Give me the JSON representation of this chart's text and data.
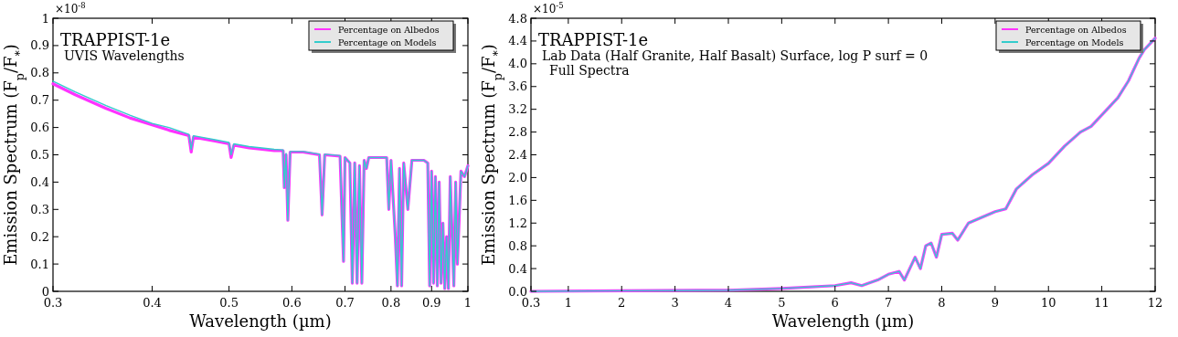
{
  "chart_data": [
    {
      "type": "line",
      "title": "TRAPPIST-1e",
      "subtitle": "UVIS Wavelengths",
      "xlabel": "Wavelength (µm)",
      "ylabel": "Emission Spectrum (F$_{p}$/F$_{*}$)",
      "annotations": [
        "×10$^{-8}$"
      ],
      "log": "x",
      "xlim": [
        0.3,
        1
      ],
      "xticks": [
        0.3,
        0.4,
        0.5,
        0.6,
        0.7,
        0.8,
        0.9,
        1
      ],
      "ylim": [
        0,
        1
      ],
      "yticks": [
        0.0,
        0.1,
        0.2,
        0.3,
        0.4,
        0.5,
        0.6,
        0.7,
        0.8,
        0.9,
        1.0
      ],
      "legend": "top right",
      "grid": false,
      "x": [
        0.3,
        0.32,
        0.35,
        0.375,
        0.4,
        0.42,
        0.445,
        0.448,
        0.451,
        0.48,
        0.5,
        0.503,
        0.507,
        0.53,
        0.55,
        0.57,
        0.585,
        0.587,
        0.59,
        0.593,
        0.597,
        0.62,
        0.65,
        0.655,
        0.66,
        0.69,
        0.697,
        0.7,
        0.71,
        0.715,
        0.72,
        0.725,
        0.73,
        0.735,
        0.74,
        0.745,
        0.75,
        0.79,
        0.795,
        0.8,
        0.81,
        0.815,
        0.82,
        0.825,
        0.83,
        0.84,
        0.85,
        0.88,
        0.89,
        0.895,
        0.9,
        0.905,
        0.91,
        0.915,
        0.92,
        0.925,
        0.93,
        0.935,
        0.94,
        0.945,
        0.95,
        0.96,
        0.965,
        0.97,
        0.98,
        0.99,
        1.0
      ],
      "series": [
        {
          "name": "Percentage on Albedos",
          "color": "#ff33ff",
          "values": [
            0.76,
            0.72,
            0.67,
            0.635,
            0.61,
            0.59,
            0.57,
            0.51,
            0.565,
            0.55,
            0.54,
            0.49,
            0.535,
            0.525,
            0.52,
            0.515,
            0.515,
            0.38,
            0.5,
            0.26,
            0.51,
            0.51,
            0.5,
            0.28,
            0.5,
            0.495,
            0.11,
            0.49,
            0.47,
            0.03,
            0.47,
            0.03,
            0.46,
            0.03,
            0.48,
            0.45,
            0.49,
            0.49,
            0.3,
            0.48,
            0.2,
            0.02,
            0.45,
            0.02,
            0.47,
            0.3,
            0.48,
            0.48,
            0.47,
            0.02,
            0.44,
            0.03,
            0.42,
            0.02,
            0.4,
            0.03,
            0.25,
            0.01,
            0.2,
            0.01,
            0.42,
            0.02,
            0.4,
            0.1,
            0.44,
            0.42,
            0.46
          ]
        },
        {
          "name": "Percentage on Models",
          "color": "#33cccc",
          "values": [
            0.77,
            0.73,
            0.68,
            0.645,
            0.615,
            0.6,
            0.575,
            0.52,
            0.57,
            0.555,
            0.545,
            0.5,
            0.54,
            0.53,
            0.525,
            0.52,
            0.518,
            0.38,
            0.505,
            0.26,
            0.512,
            0.512,
            0.502,
            0.28,
            0.502,
            0.497,
            0.11,
            0.49,
            0.47,
            0.03,
            0.47,
            0.03,
            0.46,
            0.03,
            0.48,
            0.45,
            0.49,
            0.49,
            0.3,
            0.48,
            0.2,
            0.02,
            0.45,
            0.02,
            0.47,
            0.3,
            0.48,
            0.48,
            0.47,
            0.02,
            0.44,
            0.03,
            0.42,
            0.02,
            0.4,
            0.03,
            0.25,
            0.01,
            0.2,
            0.01,
            0.42,
            0.02,
            0.4,
            0.1,
            0.44,
            0.42,
            0.46
          ]
        }
      ]
    },
    {
      "type": "line",
      "title": "TRAPPIST-1e",
      "subtitle": "Lab Data (Half Granite, Half Basalt) Surface, log P surf = 0",
      "xlabel": "Wavelength (µm)",
      "ylabel": "Emission Spectrum (F$_{p}$/F$_{*}$)",
      "annotations": [
        "×10$^{-5}$",
        "Full Spectra"
      ],
      "xlim": [
        0.3,
        12
      ],
      "xticks": [
        0.3,
        1,
        2,
        3,
        4,
        5,
        6,
        7,
        8,
        9,
        10,
        11,
        12
      ],
      "ylim": [
        0,
        4.8
      ],
      "yticks": [
        {
          "value": 0,
          "label": "0.0"
        },
        0.4,
        0.8,
        1.2,
        1.6,
        {
          "value": 2,
          "label": "2.0"
        },
        2.4,
        2.8,
        3.2,
        3.6,
        {
          "value": 4,
          "label": "4.0"
        },
        4.4,
        4.8
      ],
      "legend": "top right",
      "grid": false,
      "x": [
        0.3,
        2,
        4,
        5,
        6,
        6.3,
        6.5,
        6.8,
        7,
        7.2,
        7.3,
        7.5,
        7.6,
        7.7,
        7.8,
        7.9,
        8,
        8.2,
        8.3,
        8.5,
        8.7,
        9,
        9.2,
        9.4,
        9.7,
        10,
        10.3,
        10.6,
        10.8,
        11,
        11.3,
        11.5,
        11.7,
        11.8,
        12
      ],
      "series": [
        {
          "name": "Percentage on Albedos",
          "color": "#ff33ff",
          "values": [
            0,
            0.01,
            0.02,
            0.05,
            0.1,
            0.15,
            0.1,
            0.2,
            0.3,
            0.35,
            0.2,
            0.6,
            0.4,
            0.8,
            0.85,
            0.6,
            1.0,
            1.02,
            0.9,
            1.2,
            1.28,
            1.4,
            1.45,
            1.8,
            2.05,
            2.25,
            2.55,
            2.8,
            2.9,
            3.1,
            3.4,
            3.7,
            4.1,
            4.25,
            4.45
          ]
        },
        {
          "name": "Percentage on Models",
          "color": "#33cccc",
          "values": [
            0,
            0.01,
            0.02,
            0.05,
            0.1,
            0.15,
            0.1,
            0.2,
            0.3,
            0.35,
            0.2,
            0.6,
            0.4,
            0.8,
            0.85,
            0.6,
            1.0,
            1.02,
            0.9,
            1.2,
            1.28,
            1.4,
            1.45,
            1.8,
            2.05,
            2.25,
            2.55,
            2.8,
            2.9,
            3.1,
            3.4,
            3.7,
            4.1,
            4.25,
            4.45
          ]
        }
      ]
    }
  ]
}
